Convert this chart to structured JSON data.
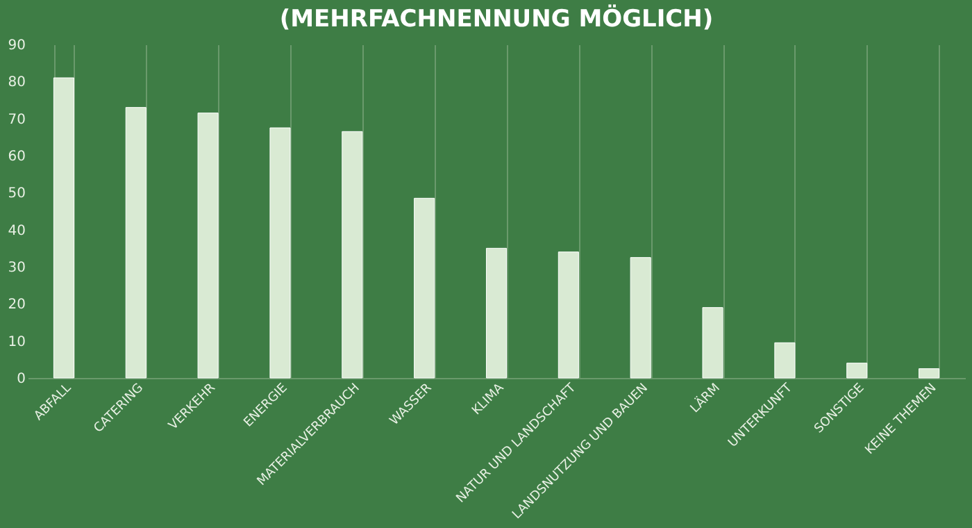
{
  "chart_data": {
    "type": "bar",
    "title": "(MEHRFACHNENNUNG MÖGLICH)",
    "categories": [
      "ABFALL",
      "CATERING",
      "VERKEHR",
      "ENERGIE",
      "MATERIALVERBRAUCH",
      "WASSER",
      "KLIMA",
      "NATUR UND LANDSCHAFT",
      "LANDSNUTZUNG UND BAUEN",
      "LÄRM",
      "UNTERKUNFT",
      "SONSTIGE",
      "KEINE THEMEN"
    ],
    "values": [
      81,
      73,
      71.5,
      67.5,
      66.5,
      48.5,
      35,
      34,
      32.5,
      19,
      9.5,
      4,
      2.5
    ],
    "color": "#d9ead3",
    "ylim": [
      0,
      90
    ],
    "yticks": [
      0,
      10,
      20,
      30,
      40,
      50,
      60,
      70,
      80,
      90
    ],
    "grid": "x"
  }
}
